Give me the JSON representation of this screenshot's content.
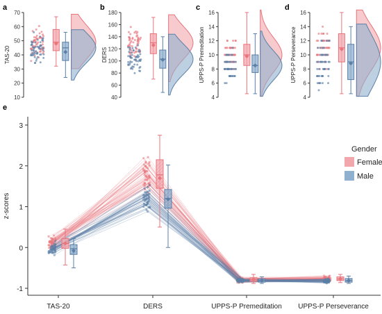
{
  "colors": {
    "female": "#e8747c",
    "male": "#5b7fa6",
    "female_fill": "#f2a7ad",
    "male_fill": "#8fb0cf",
    "axis": "#333333"
  },
  "chart_data": [
    {
      "panel": "a",
      "type": "raincloud",
      "ylabel": "TAS-20",
      "yticks": [
        10,
        20,
        30,
        40,
        50,
        60,
        70
      ],
      "ylim": [
        10,
        70
      ],
      "female": {
        "min": 32,
        "q1": 43,
        "median": 49,
        "q3": 58,
        "max": 67,
        "mean": 48
      },
      "male": {
        "min": 24,
        "q1": 36,
        "median": 45,
        "q3": 49,
        "max": 56,
        "mean": 42
      }
    },
    {
      "panel": "b",
      "type": "raincloud",
      "ylabel": "DERS",
      "yticks": [
        40,
        60,
        80,
        100,
        120,
        140,
        160,
        180
      ],
      "ylim": [
        40,
        180
      ],
      "female": {
        "min": 70,
        "q1": 112,
        "median": 130,
        "q3": 145,
        "max": 172,
        "mean": 126
      },
      "male": {
        "min": 48,
        "q1": 88,
        "median": 103,
        "q3": 118,
        "max": 140,
        "mean": 102
      }
    },
    {
      "panel": "c",
      "type": "raincloud",
      "ylabel": "UPPS-P Premeditation",
      "yticks": [
        4,
        6,
        8,
        10,
        12,
        14,
        16
      ],
      "ylim": [
        4,
        16
      ],
      "female": {
        "min": 4.5,
        "q1": 8.5,
        "median": 10,
        "q3": 11.5,
        "max": 16,
        "mean": 9.8
      },
      "male": {
        "min": 4.5,
        "q1": 7.5,
        "median": 8.5,
        "q3": 10,
        "max": 13,
        "mean": 8.5
      }
    },
    {
      "panel": "d",
      "type": "raincloud",
      "ylabel": "UPPS-P Perseverance",
      "yticks": [
        4,
        6,
        8,
        10,
        12,
        14,
        16
      ],
      "ylim": [
        4,
        16
      ],
      "female": {
        "min": 4.5,
        "q1": 9,
        "median": 11,
        "q3": 13,
        "max": 16,
        "mean": 10.8
      },
      "male": {
        "min": 4.5,
        "q1": 6.5,
        "median": 9,
        "q3": 11.5,
        "max": 14,
        "mean": 8.8
      }
    },
    {
      "panel": "e",
      "type": "paired-box",
      "ylabel": "z-scores",
      "categories": [
        "TAS-20",
        "DERS",
        "UPPS-P Premeditation",
        "UPPS-P Perseverance"
      ],
      "yticks": [
        -1,
        0,
        1,
        2,
        3
      ],
      "ylim": [
        -1,
        3
      ],
      "legend": {
        "title": "Gender",
        "entries": [
          "Female",
          "Male"
        ],
        "placement": "right"
      },
      "female": [
        {
          "min": -0.43,
          "q1": -0.02,
          "median": 0.1,
          "q3": 0.22,
          "max": 0.45,
          "mean": 0.1
        },
        {
          "min": 0.5,
          "q1": 1.45,
          "median": 1.78,
          "q3": 2.15,
          "max": 2.75,
          "mean": 1.7
        },
        {
          "min": -0.88,
          "q1": -0.83,
          "median": -0.79,
          "q3": -0.74,
          "max": -0.66,
          "mean": -0.78
        },
        {
          "min": -0.86,
          "q1": -0.81,
          "median": -0.77,
          "q3": -0.72,
          "max": -0.66,
          "mean": -0.77
        }
      ],
      "male": [
        {
          "min": -0.5,
          "q1": -0.17,
          "median": -0.03,
          "q3": 0.07,
          "max": 0.22,
          "mean": -0.08
        },
        {
          "min": 0.0,
          "q1": 0.96,
          "median": 1.2,
          "q3": 1.42,
          "max": 2.02,
          "mean": 1.18
        },
        {
          "min": -0.88,
          "q1": -0.85,
          "median": -0.81,
          "q3": -0.77,
          "max": -0.72,
          "mean": -0.81
        },
        {
          "min": -0.88,
          "q1": -0.85,
          "median": -0.81,
          "q3": -0.76,
          "max": -0.7,
          "mean": -0.81
        }
      ]
    }
  ]
}
